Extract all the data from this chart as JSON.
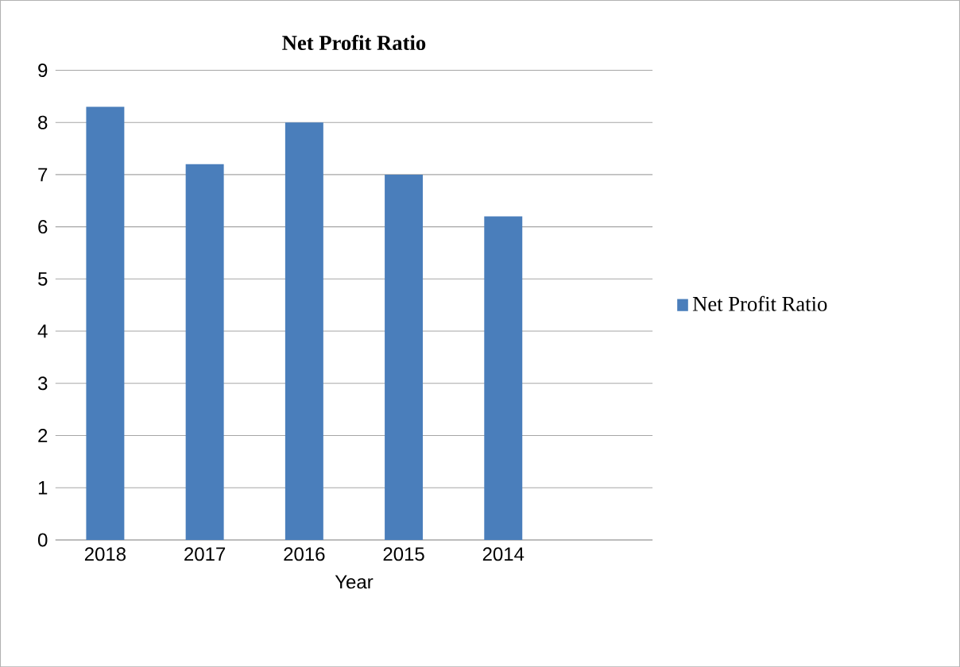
{
  "chart_data": {
    "type": "bar",
    "title": "Net Profit  Ratio",
    "xlabel": "Year",
    "categories": [
      "2018",
      "2017",
      "2016",
      "2015",
      "2014"
    ],
    "series": [
      {
        "name": "Net Profit  Ratio",
        "color": "#4a7ebb",
        "values": [
          8.3,
          7.2,
          8.0,
          7.0,
          6.2
        ]
      }
    ],
    "ylim": [
      0,
      9
    ],
    "yticks": [
      0,
      1,
      2,
      3,
      4,
      5,
      6,
      7,
      8,
      9
    ],
    "grid": "y",
    "legend": "right"
  }
}
